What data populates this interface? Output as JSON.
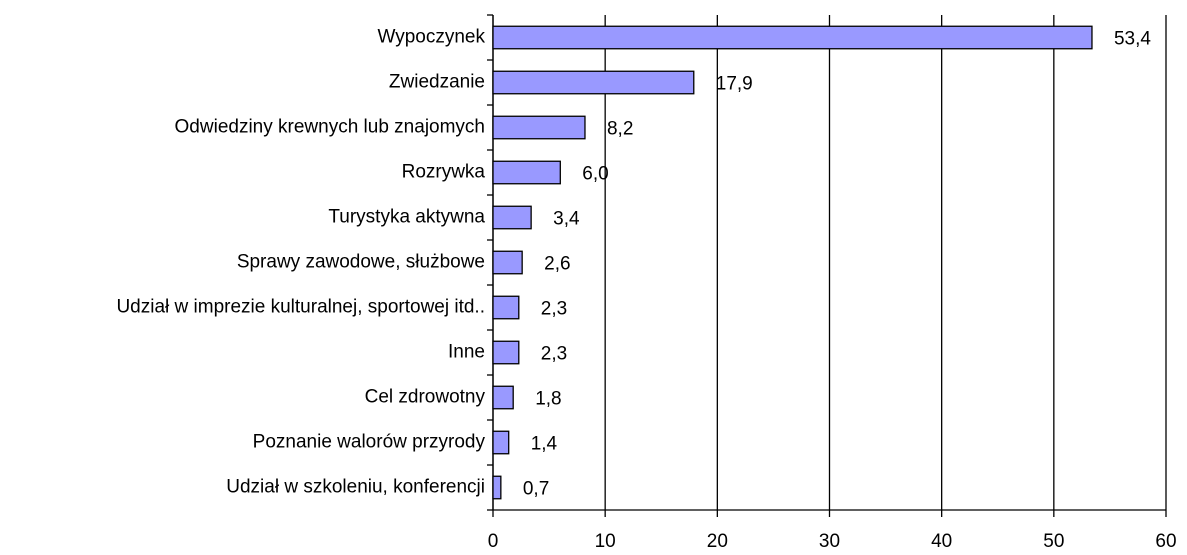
{
  "chart_data": {
    "type": "bar",
    "orientation": "horizontal",
    "categories": [
      "Wypoczynek",
      "Zwiedzanie",
      "Odwiedziny krewnych lub znajomych",
      "Rozrywka",
      "Turystyka aktywna",
      "Sprawy zawodowe, służbowe",
      "Udział w imprezie kulturalnej, sportowej itd..",
      "Inne",
      "Cel zdrowotny",
      "Poznanie walorów przyrody",
      "Udział w szkoleniu, konferencji"
    ],
    "values": [
      53.4,
      17.9,
      8.2,
      6.0,
      3.4,
      2.6,
      2.3,
      2.3,
      1.8,
      1.4,
      0.7
    ],
    "value_labels": [
      "53,4",
      "17,9",
      "8,2",
      "6,0",
      "3,4",
      "2,6",
      "2,3",
      "2,3",
      "1,8",
      "1,4",
      "0,7"
    ],
    "color": "#9999ff",
    "xlim": [
      0,
      60
    ],
    "xticks": [
      0,
      10,
      20,
      30,
      40,
      50,
      60
    ],
    "grid": true
  }
}
